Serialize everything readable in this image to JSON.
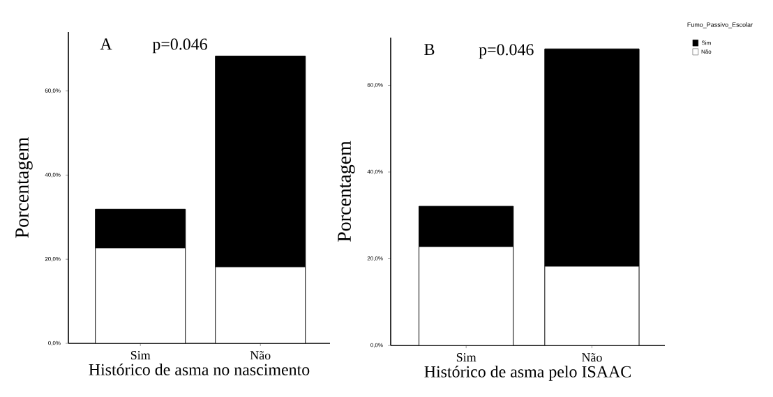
{
  "chart_data": [
    {
      "type": "bar",
      "stacked": true,
      "xlabel": "Histórico de asma no nascimento",
      "ylabel": "Porcentagem",
      "annotations": [
        "A",
        "p=0.046"
      ],
      "categories": [
        "Sim",
        "Não"
      ],
      "series": [
        {
          "color": "#ffffff",
          "values": [
            22.7,
            18.2
          ]
        },
        {
          "color": "#000000",
          "values": [
            9.2,
            50.1
          ]
        }
      ],
      "ylim": [
        0,
        74
      ],
      "yticks": [
        {
          "value": 0,
          "label": "0,0%"
        },
        {
          "value": 20,
          "label": "20,0%"
        },
        {
          "value": 40,
          "label": "40,0%"
        },
        {
          "value": 60,
          "label": "60,0%"
        }
      ],
      "grid": false,
      "legend": false
    },
    {
      "type": "bar",
      "stacked": true,
      "xlabel": "Histórico de asma pelo ISAAC",
      "ylabel": "Porcentagem",
      "annotations": [
        "B",
        "p=0.046"
      ],
      "categories": [
        "Sim",
        "Não"
      ],
      "series": [
        {
          "name": "Não",
          "color": "#ffffff",
          "values": [
            22.8,
            18.3
          ]
        },
        {
          "name": "Sim",
          "color": "#000000",
          "values": [
            9.3,
            50.1
          ]
        }
      ],
      "ylim": [
        0,
        71
      ],
      "yticks": [
        {
          "value": 0,
          "label": "0,0%"
        },
        {
          "value": 20,
          "label": "20,0%"
        },
        {
          "value": 40,
          "label": "40,0%"
        },
        {
          "value": 60,
          "label": "60,0%"
        }
      ],
      "grid": false,
      "legend": "top right",
      "legend_title": "Fumo_Passivo_Escolar"
    }
  ]
}
